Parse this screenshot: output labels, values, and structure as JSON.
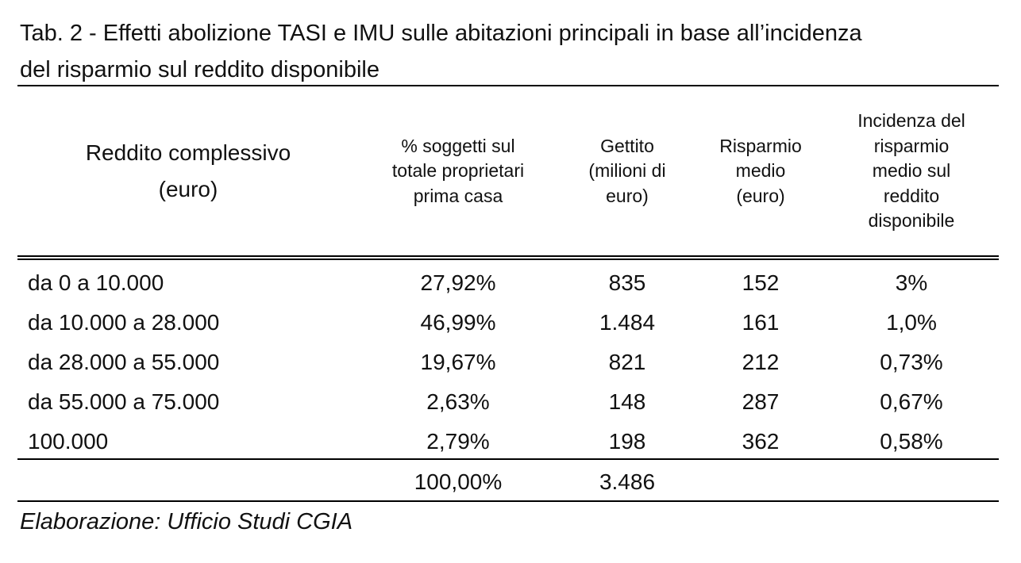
{
  "header": {
    "title": [
      "Tab. 2 - Effetti abolizione TASI e IMU sulle abitazioni principali in base all’incidenza",
      "del risparmio sul reddito disponibile"
    ]
  },
  "table": {
    "columns": [
      [
        "Reddito complessivo",
        "(euro)"
      ],
      [
        "% soggetti sul",
        "totale proprietari",
        "prima casa"
      ],
      [
        "Gettito",
        "(milioni di",
        "euro)"
      ],
      [
        "Risparmio",
        "medio",
        "(euro)"
      ],
      [
        "Incidenza del",
        "risparmio",
        "medio sul",
        "reddito",
        "disponibile"
      ]
    ],
    "rows": [
      [
        "da 0 a 10.000",
        "27,92%",
        "835",
        "152",
        "3%"
      ],
      [
        "da 10.000 a 28.000",
        "46,99%",
        "1.484",
        "161",
        "1,0%"
      ],
      [
        "da 28.000 a 55.000",
        "19,67%",
        "821",
        "212",
        "0,73%"
      ],
      [
        "da 55.000 a 75.000",
        "2,63%",
        "148",
        "287",
        "0,67%"
      ],
      [
        "100.000",
        "2,79%",
        "198",
        "362",
        "0,58%"
      ]
    ],
    "total": {
      "share": "100,00%",
      "gettito": "3.486"
    }
  },
  "footer": {
    "source": "Elaborazione: Ufficio Studi CGIA"
  }
}
